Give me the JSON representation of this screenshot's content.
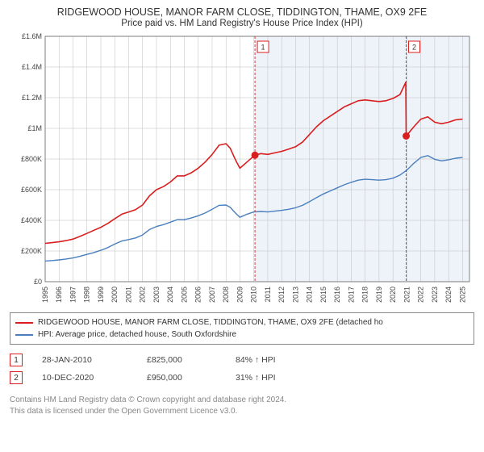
{
  "title": "RIDGEWOOD HOUSE, MANOR FARM CLOSE, TIDDINGTON, THAME, OX9 2FE",
  "subtitle": "Price paid vs. HM Land Registry's House Price Index (HPI)",
  "chart": {
    "type": "line",
    "background_color": "#ffffff",
    "shaded_region_color": "#eef3f9",
    "grid_color": "#bfbfbf",
    "axis_color": "#666666",
    "tick_label_color": "#444444",
    "tick_fontsize": 9,
    "y": {
      "min": 0,
      "max": 1600000,
      "ticks": [
        0,
        200000,
        400000,
        600000,
        800000,
        1000000,
        1200000,
        1400000,
        1600000
      ],
      "tick_labels": [
        "£0",
        "£200K",
        "£400K",
        "£600K",
        "£800K",
        "£1M",
        "£1.2M",
        "£1.4M",
        "£1.6M"
      ]
    },
    "x": {
      "min": 1995,
      "max": 2025.5,
      "ticks": [
        1995,
        1996,
        1997,
        1998,
        1999,
        2000,
        2001,
        2002,
        2003,
        2004,
        2005,
        2006,
        2007,
        2008,
        2009,
        2010,
        2011,
        2012,
        2013,
        2014,
        2015,
        2016,
        2017,
        2018,
        2019,
        2020,
        2021,
        2022,
        2023,
        2024,
        2025
      ],
      "tick_labels": [
        "1995",
        "1996",
        "1997",
        "1998",
        "1999",
        "2000",
        "2001",
        "2002",
        "2003",
        "2004",
        "2005",
        "2006",
        "2007",
        "2008",
        "2009",
        "2010",
        "2011",
        "2012",
        "2013",
        "2014",
        "2015",
        "2016",
        "2017",
        "2018",
        "2019",
        "2020",
        "2021",
        "2022",
        "2023",
        "2024",
        "2025"
      ]
    },
    "shaded_from_x": 2010.08,
    "series": [
      {
        "name": "property",
        "label": "RIDGEWOOD HOUSE, MANOR FARM CLOSE, TIDDINGTON, THAME, OX9 2FE (detached ho",
        "color": "#d81e1e",
        "line_width": 1.6,
        "points": [
          [
            1995.0,
            250000
          ],
          [
            1995.5,
            255000
          ],
          [
            1996.0,
            260000
          ],
          [
            1996.5,
            268000
          ],
          [
            1997.0,
            278000
          ],
          [
            1997.5,
            295000
          ],
          [
            1998.0,
            315000
          ],
          [
            1998.5,
            335000
          ],
          [
            1999.0,
            355000
          ],
          [
            1999.5,
            380000
          ],
          [
            2000.0,
            410000
          ],
          [
            2000.5,
            440000
          ],
          [
            2001.0,
            455000
          ],
          [
            2001.5,
            470000
          ],
          [
            2002.0,
            500000
          ],
          [
            2002.5,
            560000
          ],
          [
            2003.0,
            600000
          ],
          [
            2003.5,
            620000
          ],
          [
            2004.0,
            650000
          ],
          [
            2004.5,
            690000
          ],
          [
            2005.0,
            690000
          ],
          [
            2005.5,
            710000
          ],
          [
            2006.0,
            740000
          ],
          [
            2006.5,
            780000
          ],
          [
            2007.0,
            830000
          ],
          [
            2007.5,
            890000
          ],
          [
            2008.0,
            900000
          ],
          [
            2008.3,
            870000
          ],
          [
            2008.7,
            790000
          ],
          [
            2009.0,
            740000
          ],
          [
            2009.5,
            780000
          ],
          [
            2010.0,
            820000
          ],
          [
            2010.08,
            825000
          ],
          [
            2010.5,
            835000
          ],
          [
            2011.0,
            830000
          ],
          [
            2011.5,
            840000
          ],
          [
            2012.0,
            850000
          ],
          [
            2012.5,
            865000
          ],
          [
            2013.0,
            880000
          ],
          [
            2013.5,
            910000
          ],
          [
            2014.0,
            960000
          ],
          [
            2014.5,
            1010000
          ],
          [
            2015.0,
            1050000
          ],
          [
            2015.5,
            1080000
          ],
          [
            2016.0,
            1110000
          ],
          [
            2016.5,
            1140000
          ],
          [
            2017.0,
            1160000
          ],
          [
            2017.5,
            1180000
          ],
          [
            2018.0,
            1185000
          ],
          [
            2018.5,
            1180000
          ],
          [
            2019.0,
            1175000
          ],
          [
            2019.5,
            1180000
          ],
          [
            2020.0,
            1195000
          ],
          [
            2020.5,
            1220000
          ],
          [
            2020.92,
            1300000
          ],
          [
            2020.95,
            950000
          ],
          [
            2021.0,
            955000
          ],
          [
            2021.5,
            1010000
          ],
          [
            2022.0,
            1060000
          ],
          [
            2022.5,
            1075000
          ],
          [
            2023.0,
            1040000
          ],
          [
            2023.5,
            1030000
          ],
          [
            2024.0,
            1040000
          ],
          [
            2024.5,
            1055000
          ],
          [
            2025.0,
            1060000
          ]
        ]
      },
      {
        "name": "hpi",
        "label": "HPI: Average price, detached house, South Oxfordshire",
        "color": "#4a7fbf",
        "line_width": 1.4,
        "points": [
          [
            1995.0,
            135000
          ],
          [
            1995.5,
            138000
          ],
          [
            1996.0,
            142000
          ],
          [
            1996.5,
            148000
          ],
          [
            1997.0,
            155000
          ],
          [
            1997.5,
            165000
          ],
          [
            1998.0,
            178000
          ],
          [
            1998.5,
            190000
          ],
          [
            1999.0,
            205000
          ],
          [
            1999.5,
            222000
          ],
          [
            2000.0,
            245000
          ],
          [
            2000.5,
            265000
          ],
          [
            2001.0,
            275000
          ],
          [
            2001.5,
            285000
          ],
          [
            2002.0,
            305000
          ],
          [
            2002.5,
            340000
          ],
          [
            2003.0,
            360000
          ],
          [
            2003.5,
            372000
          ],
          [
            2004.0,
            388000
          ],
          [
            2004.5,
            405000
          ],
          [
            2005.0,
            405000
          ],
          [
            2005.5,
            415000
          ],
          [
            2006.0,
            430000
          ],
          [
            2006.5,
            448000
          ],
          [
            2007.0,
            472000
          ],
          [
            2007.5,
            498000
          ],
          [
            2008.0,
            500000
          ],
          [
            2008.3,
            485000
          ],
          [
            2008.7,
            445000
          ],
          [
            2009.0,
            420000
          ],
          [
            2009.5,
            440000
          ],
          [
            2010.0,
            455000
          ],
          [
            2010.5,
            458000
          ],
          [
            2011.0,
            455000
          ],
          [
            2011.5,
            460000
          ],
          [
            2012.0,
            465000
          ],
          [
            2012.5,
            472000
          ],
          [
            2013.0,
            482000
          ],
          [
            2013.5,
            498000
          ],
          [
            2014.0,
            522000
          ],
          [
            2014.5,
            548000
          ],
          [
            2015.0,
            572000
          ],
          [
            2015.5,
            592000
          ],
          [
            2016.0,
            612000
          ],
          [
            2016.5,
            632000
          ],
          [
            2017.0,
            648000
          ],
          [
            2017.5,
            662000
          ],
          [
            2018.0,
            668000
          ],
          [
            2018.5,
            665000
          ],
          [
            2019.0,
            662000
          ],
          [
            2019.5,
            665000
          ],
          [
            2020.0,
            675000
          ],
          [
            2020.5,
            695000
          ],
          [
            2020.95,
            725000
          ],
          [
            2021.0,
            728000
          ],
          [
            2021.5,
            772000
          ],
          [
            2022.0,
            810000
          ],
          [
            2022.5,
            822000
          ],
          [
            2023.0,
            798000
          ],
          [
            2023.5,
            788000
          ],
          [
            2024.0,
            795000
          ],
          [
            2024.5,
            805000
          ],
          [
            2025.0,
            810000
          ]
        ]
      }
    ],
    "markers": [
      {
        "id": "1",
        "color": "#d81e1e",
        "x": 2010.08,
        "y": 825000,
        "date": "28-JAN-2010",
        "price": "£825,000",
        "pct": "84% ↑ HPI",
        "dashed_line": true,
        "dot": true
      },
      {
        "id": "2",
        "color": "#d81e1e",
        "x": 2020.95,
        "y": 950000,
        "date": "10-DEC-2020",
        "price": "£950,000",
        "pct": "31% ↑ HPI",
        "dashed_line": true,
        "dot": true
      }
    ]
  },
  "legend": {
    "border_color": "#888888"
  },
  "footnote": {
    "line1": "Contains HM Land Registry data © Crown copyright and database right 2024.",
    "line2": "This data is licensed under the Open Government Licence v3.0."
  }
}
